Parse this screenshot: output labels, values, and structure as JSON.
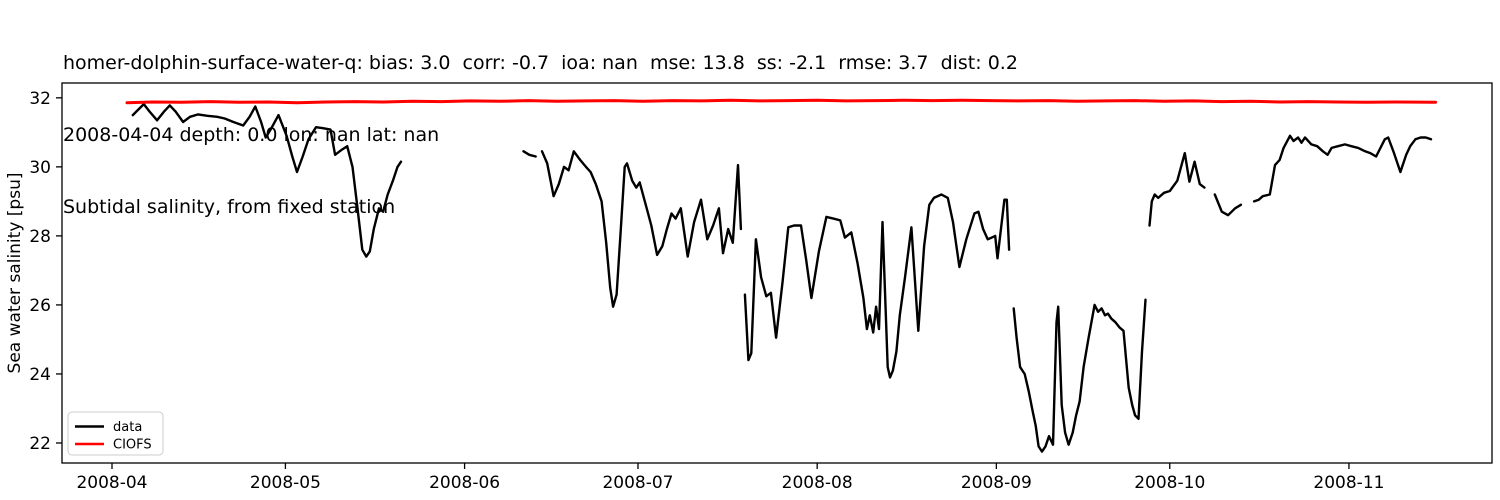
{
  "chart_data": {
    "type": "line",
    "title_lines": [
      "homer-dolphin-surface-water-q: bias: 3.0  corr: -0.7  ioa: nan  mse: 13.8  ss: -2.1  rmse: 3.7  dist: 0.2",
      "2008-04-04 depth: 0.0 lon: nan lat: nan",
      "Subtidal salinity, from fixed station"
    ],
    "ylabel": "Sea water salinity [psu]",
    "x_epoch": "2008-04-01",
    "xlim_days": [
      -8.65,
      238.75
    ],
    "ylim": [
      21.42,
      32.43
    ],
    "x_ticks": [
      {
        "day": 0,
        "label": "2008-04"
      },
      {
        "day": 30,
        "label": "2008-05"
      },
      {
        "day": 61,
        "label": "2008-06"
      },
      {
        "day": 91,
        "label": "2008-07"
      },
      {
        "day": 122,
        "label": "2008-08"
      },
      {
        "day": 153,
        "label": "2008-09"
      },
      {
        "day": 183,
        "label": "2008-10"
      },
      {
        "day": 214,
        "label": "2008-11"
      }
    ],
    "y_ticks": [
      22,
      24,
      26,
      28,
      30,
      32
    ],
    "grid": false,
    "legend": {
      "position": "lower-left",
      "items": [
        {
          "label": "data",
          "color": "#000000"
        },
        {
          "label": "CIOFS",
          "color": "#ff0000"
        }
      ]
    },
    "series": [
      {
        "name": "data",
        "color": "#000000",
        "line_width": 2.4,
        "points": [
          [
            3.6,
            31.5
          ],
          [
            4.5,
            31.65
          ],
          [
            5.5,
            31.82
          ],
          [
            6.5,
            31.6
          ],
          [
            7.8,
            31.35
          ],
          [
            9.0,
            31.6
          ],
          [
            10.0,
            31.78
          ],
          [
            11.0,
            31.6
          ],
          [
            12.3,
            31.3
          ],
          [
            13.5,
            31.45
          ],
          [
            14.9,
            31.52
          ],
          [
            16.5,
            31.48
          ],
          [
            18.2,
            31.45
          ],
          [
            19.5,
            31.4
          ],
          [
            21.0,
            31.3
          ],
          [
            22.7,
            31.2
          ],
          [
            23.8,
            31.45
          ],
          [
            24.8,
            31.75
          ],
          [
            25.8,
            31.3
          ],
          [
            26.6,
            30.85
          ],
          [
            27.5,
            31.1
          ],
          [
            28.8,
            31.5
          ],
          [
            30.2,
            30.9
          ],
          [
            31.2,
            30.3
          ],
          [
            32.0,
            29.85
          ],
          [
            33.0,
            30.3
          ],
          [
            34.0,
            30.8
          ],
          [
            35.3,
            31.15
          ],
          [
            36.5,
            31.12
          ],
          [
            37.8,
            31.08
          ],
          [
            38.6,
            30.35
          ],
          [
            39.8,
            30.5
          ],
          [
            40.7,
            30.6
          ],
          [
            41.6,
            30.0
          ],
          [
            42.4,
            28.9
          ],
          [
            43.3,
            27.6
          ],
          [
            44.0,
            27.4
          ],
          [
            44.6,
            27.55
          ],
          [
            45.3,
            28.2
          ],
          [
            46.2,
            28.8
          ],
          [
            46.9,
            28.7
          ],
          [
            47.7,
            29.2
          ],
          [
            48.6,
            29.6
          ],
          [
            49.4,
            30.0
          ],
          [
            50.0,
            30.15
          ],
          null,
          [
            71.2,
            30.45
          ],
          [
            72.2,
            30.35
          ],
          [
            73.3,
            30.3
          ],
          null,
          [
            74.4,
            30.45
          ],
          [
            75.3,
            30.1
          ],
          [
            76.4,
            29.15
          ],
          [
            77.3,
            29.5
          ],
          [
            78.2,
            30.0
          ],
          [
            79.0,
            29.9
          ],
          [
            79.9,
            30.45
          ],
          [
            81.0,
            30.2
          ],
          [
            82.0,
            30.0
          ],
          [
            82.8,
            29.85
          ],
          [
            83.7,
            29.5
          ],
          [
            84.7,
            29.0
          ],
          [
            85.5,
            27.8
          ],
          [
            86.2,
            26.5
          ],
          [
            86.7,
            25.95
          ],
          [
            87.3,
            26.3
          ],
          [
            88.0,
            28.1
          ],
          [
            88.7,
            30.0
          ],
          [
            89.1,
            30.1
          ],
          [
            90.0,
            29.6
          ],
          [
            90.7,
            29.4
          ],
          [
            91.3,
            29.55
          ],
          [
            92.5,
            28.8
          ],
          [
            93.3,
            28.3
          ],
          [
            94.3,
            27.45
          ],
          [
            95.2,
            27.7
          ],
          [
            96.0,
            28.2
          ],
          [
            96.8,
            28.65
          ],
          [
            97.5,
            28.5
          ],
          [
            98.4,
            28.8
          ],
          [
            99.6,
            27.4
          ],
          [
            100.7,
            28.4
          ],
          [
            101.9,
            29.05
          ],
          [
            103.0,
            27.9
          ],
          [
            104.0,
            28.3
          ],
          [
            105.0,
            28.8
          ],
          [
            105.7,
            27.5
          ],
          [
            106.6,
            28.2
          ],
          [
            107.4,
            27.8
          ],
          [
            108.3,
            30.05
          ],
          [
            108.8,
            28.2
          ],
          null,
          [
            109.5,
            26.3
          ],
          [
            110.1,
            24.4
          ],
          [
            110.6,
            24.6
          ],
          [
            111.4,
            27.9
          ],
          [
            112.3,
            26.8
          ],
          [
            113.2,
            26.25
          ],
          [
            114.0,
            26.35
          ],
          [
            114.9,
            25.05
          ],
          [
            116.0,
            26.65
          ],
          [
            117.0,
            28.25
          ],
          [
            118.0,
            28.3
          ],
          [
            119.2,
            28.3
          ],
          [
            120.1,
            27.3
          ],
          [
            121.0,
            26.2
          ],
          [
            122.3,
            27.55
          ],
          [
            123.6,
            28.55
          ],
          [
            124.8,
            28.5
          ],
          [
            126.0,
            28.45
          ],
          [
            126.8,
            27.95
          ],
          [
            127.9,
            28.1
          ],
          [
            129.0,
            27.2
          ],
          [
            130.0,
            26.2
          ],
          [
            130.6,
            25.3
          ],
          [
            131.1,
            25.7
          ],
          [
            131.7,
            25.2
          ],
          [
            132.2,
            25.95
          ],
          [
            132.7,
            25.3
          ],
          [
            133.3,
            28.4
          ],
          [
            134.2,
            24.2
          ],
          [
            134.6,
            23.9
          ],
          [
            135.1,
            24.1
          ],
          [
            135.7,
            24.65
          ],
          [
            136.3,
            25.7
          ],
          [
            137.2,
            26.8
          ],
          [
            138.3,
            28.25
          ],
          [
            139.5,
            25.25
          ],
          [
            140.5,
            27.7
          ],
          [
            141.4,
            28.9
          ],
          [
            142.2,
            29.1
          ],
          [
            143.5,
            29.2
          ],
          [
            144.6,
            29.1
          ],
          [
            145.5,
            28.4
          ],
          [
            146.6,
            27.1
          ],
          [
            147.8,
            27.9
          ],
          [
            149.2,
            28.65
          ],
          [
            149.9,
            28.7
          ],
          [
            150.7,
            28.2
          ],
          [
            151.5,
            27.9
          ],
          [
            152.2,
            27.95
          ],
          [
            152.8,
            28.0
          ],
          [
            153.2,
            27.35
          ],
          [
            154.4,
            29.05
          ],
          [
            154.8,
            29.05
          ],
          [
            155.2,
            27.6
          ],
          null,
          [
            156.0,
            25.9
          ],
          [
            156.5,
            25.05
          ],
          [
            157.1,
            24.2
          ],
          [
            157.9,
            24.0
          ],
          [
            158.6,
            23.5
          ],
          [
            159.3,
            22.9
          ],
          [
            159.8,
            22.5
          ],
          [
            160.3,
            21.9
          ],
          [
            160.9,
            21.75
          ],
          [
            161.5,
            21.9
          ],
          [
            162.1,
            22.2
          ],
          [
            162.8,
            21.95
          ],
          [
            163.4,
            25.5
          ],
          [
            163.7,
            25.95
          ],
          [
            164.3,
            23.1
          ],
          [
            164.9,
            22.3
          ],
          [
            165.5,
            21.95
          ],
          [
            166.2,
            22.3
          ],
          [
            166.8,
            22.8
          ],
          [
            167.4,
            23.2
          ],
          [
            168.1,
            24.2
          ],
          [
            168.9,
            25.0
          ],
          [
            170.0,
            26.0
          ],
          [
            170.6,
            25.8
          ],
          [
            171.2,
            25.9
          ],
          [
            171.8,
            25.7
          ],
          [
            172.3,
            25.75
          ],
          [
            172.9,
            25.6
          ],
          [
            173.6,
            25.5
          ],
          [
            174.3,
            25.35
          ],
          [
            175.0,
            25.25
          ],
          [
            175.9,
            23.6
          ],
          [
            176.5,
            23.1
          ],
          [
            177.0,
            22.8
          ],
          [
            177.6,
            22.7
          ],
          [
            178.2,
            24.65
          ],
          [
            178.8,
            26.15
          ],
          null,
          [
            179.5,
            28.3
          ],
          [
            179.9,
            29.0
          ],
          [
            180.4,
            29.2
          ],
          [
            181.0,
            29.1
          ],
          [
            182.0,
            29.25
          ],
          [
            183.0,
            29.3
          ],
          [
            184.3,
            29.6
          ],
          [
            185.6,
            30.4
          ],
          [
            186.4,
            29.57
          ],
          [
            187.3,
            30.15
          ],
          [
            188.2,
            29.5
          ],
          [
            189.0,
            29.4
          ],
          null,
          [
            190.8,
            29.2
          ],
          [
            192.0,
            28.7
          ],
          [
            193.1,
            28.6
          ],
          [
            194.3,
            28.8
          ],
          [
            195.3,
            28.9
          ],
          null,
          [
            197.6,
            29.0
          ],
          [
            198.4,
            29.05
          ],
          [
            199.1,
            29.15
          ],
          [
            200.3,
            29.2
          ],
          [
            201.2,
            30.05
          ],
          [
            202.0,
            30.2
          ],
          [
            202.7,
            30.55
          ],
          [
            203.8,
            30.9
          ],
          [
            204.4,
            30.75
          ],
          [
            205.2,
            30.85
          ],
          [
            205.8,
            30.7
          ],
          [
            206.4,
            30.85
          ],
          [
            207.5,
            30.65
          ],
          [
            208.5,
            30.6
          ],
          [
            209.5,
            30.45
          ],
          [
            210.3,
            30.35
          ],
          [
            211.0,
            30.55
          ],
          [
            212.1,
            30.6
          ],
          [
            213.3,
            30.65
          ],
          [
            214.4,
            30.6
          ],
          [
            215.6,
            30.55
          ],
          [
            216.8,
            30.45
          ],
          [
            217.7,
            30.4
          ],
          [
            218.7,
            30.3
          ],
          [
            220.2,
            30.8
          ],
          [
            220.8,
            30.85
          ],
          [
            221.8,
            30.4
          ],
          [
            222.9,
            29.85
          ],
          [
            223.9,
            30.35
          ],
          [
            224.6,
            30.6
          ],
          [
            225.5,
            30.8
          ],
          [
            226.4,
            30.85
          ],
          [
            227.3,
            30.85
          ],
          [
            228.2,
            30.8
          ]
        ]
      },
      {
        "name": "CIOFS",
        "color": "#ff0000",
        "line_width": 3,
        "points": [
          [
            2.6,
            31.86
          ],
          [
            7,
            31.88
          ],
          [
            12,
            31.87
          ],
          [
            17,
            31.89
          ],
          [
            22,
            31.87
          ],
          [
            27,
            31.88
          ],
          [
            32,
            31.86
          ],
          [
            37,
            31.88
          ],
          [
            42,
            31.89
          ],
          [
            47,
            31.88
          ],
          [
            52,
            31.9
          ],
          [
            57,
            31.89
          ],
          [
            62,
            31.91
          ],
          [
            67,
            31.9
          ],
          [
            72,
            31.92
          ],
          [
            77,
            31.9
          ],
          [
            82,
            31.91
          ],
          [
            87,
            31.92
          ],
          [
            92,
            31.9
          ],
          [
            97,
            31.92
          ],
          [
            102,
            31.91
          ],
          [
            107,
            31.93
          ],
          [
            112,
            31.91
          ],
          [
            117,
            31.92
          ],
          [
            122,
            31.93
          ],
          [
            127,
            31.91
          ],
          [
            132,
            31.92
          ],
          [
            137,
            31.93
          ],
          [
            142,
            31.92
          ],
          [
            147,
            31.93
          ],
          [
            152,
            31.92
          ],
          [
            157,
            31.91
          ],
          [
            162,
            31.92
          ],
          [
            167,
            31.9
          ],
          [
            172,
            31.91
          ],
          [
            177,
            31.92
          ],
          [
            182,
            31.9
          ],
          [
            187,
            31.91
          ],
          [
            192,
            31.89
          ],
          [
            197,
            31.9
          ],
          [
            202,
            31.88
          ],
          [
            207,
            31.89
          ],
          [
            212,
            31.88
          ],
          [
            217,
            31.87
          ],
          [
            222,
            31.88
          ],
          [
            229,
            31.87
          ]
        ]
      }
    ]
  }
}
